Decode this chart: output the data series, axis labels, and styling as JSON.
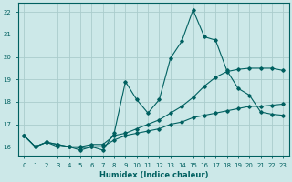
{
  "xlabel": "Humidex (Indice chaleur)",
  "xlim": [
    -0.5,
    23.5
  ],
  "ylim": [
    15.6,
    22.4
  ],
  "yticks": [
    16,
    17,
    18,
    19,
    20,
    21,
    22
  ],
  "xticks": [
    0,
    1,
    2,
    3,
    4,
    5,
    6,
    7,
    8,
    9,
    10,
    11,
    12,
    13,
    14,
    15,
    16,
    17,
    18,
    19,
    20,
    21,
    22,
    23
  ],
  "bg_color": "#cce8e8",
  "grid_color": "#aacccc",
  "line_color": "#006060",
  "series": [
    {
      "x": [
        0,
        1,
        2,
        3,
        4,
        5,
        6,
        7,
        8,
        9,
        10,
        11,
        12,
        13,
        14,
        15,
        16,
        17,
        18,
        19,
        20,
        21,
        22,
        23
      ],
      "y": [
        16.5,
        16.0,
        16.2,
        16.0,
        16.0,
        15.85,
        16.0,
        15.85,
        16.6,
        18.9,
        18.1,
        17.5,
        18.1,
        19.95,
        20.7,
        22.1,
        20.9,
        20.75,
        19.4,
        18.6,
        18.3,
        17.55,
        17.45,
        17.4
      ]
    },
    {
      "x": [
        0,
        1,
        2,
        3,
        4,
        5,
        6,
        7,
        8,
        9,
        10,
        11,
        12,
        13,
        14,
        15,
        16,
        17,
        18,
        19,
        20,
        21,
        22,
        23
      ],
      "y": [
        16.5,
        16.0,
        16.2,
        16.1,
        16.0,
        16.0,
        16.1,
        16.1,
        16.5,
        16.6,
        16.8,
        17.0,
        17.2,
        17.5,
        17.8,
        18.2,
        18.7,
        19.1,
        19.35,
        19.45,
        19.5,
        19.5,
        19.5,
        19.4
      ]
    },
    {
      "x": [
        0,
        1,
        2,
        3,
        4,
        5,
        6,
        7,
        8,
        9,
        10,
        11,
        12,
        13,
        14,
        15,
        16,
        17,
        18,
        19,
        20,
        21,
        22,
        23
      ],
      "y": [
        16.5,
        16.0,
        16.2,
        16.1,
        16.0,
        15.95,
        16.0,
        16.0,
        16.3,
        16.5,
        16.6,
        16.7,
        16.8,
        17.0,
        17.1,
        17.3,
        17.4,
        17.5,
        17.6,
        17.7,
        17.8,
        17.8,
        17.85,
        17.9
      ]
    }
  ]
}
